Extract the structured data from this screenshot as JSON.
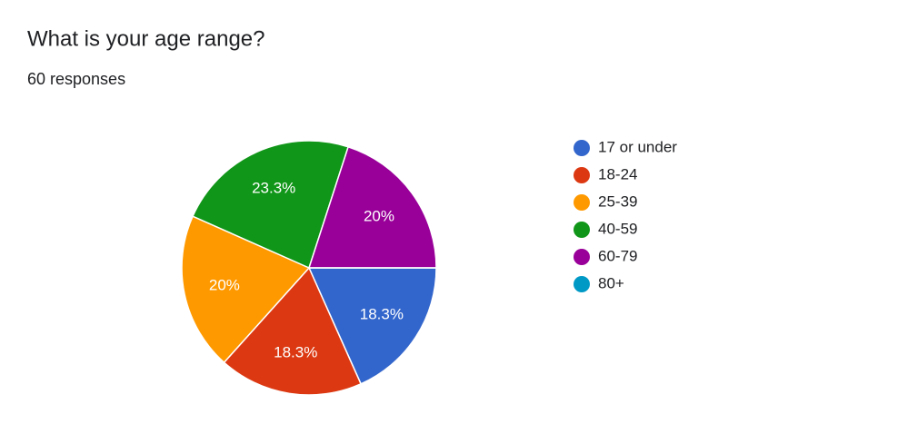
{
  "chart_data": {
    "type": "pie",
    "title": "What is your age range?",
    "subtitle": "60 responses",
    "categories": [
      "17 or under",
      "18-24",
      "25-39",
      "40-59",
      "60-79",
      "80+"
    ],
    "values": [
      18.3,
      18.3,
      20,
      23.3,
      20,
      0
    ],
    "value_labels": [
      "18.3%",
      "18.3%",
      "20%",
      "23.3%",
      "20%",
      null
    ],
    "colors": [
      "#3366cc",
      "#dc3912",
      "#ff9900",
      "#109618",
      "#990099",
      "#0099c6"
    ],
    "legend": "right"
  }
}
